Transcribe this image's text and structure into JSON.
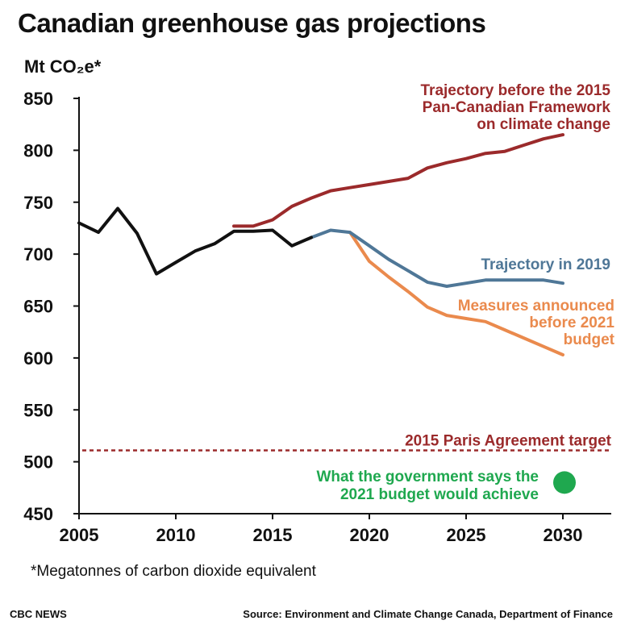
{
  "title": "Canadian greenhouse gas projections",
  "ylabel": "Mt CO₂e*",
  "footnote": "*Megatonnes of carbon dioxide equivalent",
  "brand": "CBC NEWS",
  "source": "Source: Environment and Climate Change Canada, Department of Finance",
  "colors": {
    "historical": "#111111",
    "pre2015": "#9b2a2b",
    "traj2019": "#4f7797",
    "measures2021": "#ea8a4d",
    "target": "#9b2a2b",
    "budget2021": "#1fa84f"
  },
  "chart_data": {
    "type": "line",
    "xlim": [
      2005,
      2032.5
    ],
    "ylim": [
      450,
      850
    ],
    "xticks": [
      2005,
      2010,
      2015,
      2020,
      2025,
      2030
    ],
    "yticks": [
      450,
      500,
      550,
      600,
      650,
      700,
      750,
      800,
      850
    ],
    "series": [
      {
        "key": "historical",
        "x": [
          2005,
          2006,
          2007,
          2008,
          2009,
          2010,
          2011,
          2012,
          2013,
          2014,
          2015,
          2016,
          2017
        ],
        "y": [
          730,
          721,
          744,
          720,
          681,
          692,
          703,
          710,
          722,
          722,
          723,
          708,
          716
        ]
      },
      {
        "key": "pre2015",
        "name": "Trajectory before the 2015 Pan-Canadian Framework on climate change",
        "x": [
          2013,
          2014,
          2015,
          2016,
          2017,
          2018,
          2019,
          2020,
          2021,
          2022,
          2023,
          2024,
          2025,
          2026,
          2027,
          2028,
          2029,
          2030
        ],
        "y": [
          727,
          727,
          733,
          746,
          754,
          761,
          764,
          767,
          770,
          773,
          783,
          788,
          792,
          797,
          799,
          805,
          811,
          815
        ]
      },
      {
        "key": "traj2019",
        "name": "Trajectory in 2019",
        "x": [
          2017,
          2018,
          2019,
          2020,
          2021,
          2022,
          2023,
          2024,
          2025,
          2026,
          2027,
          2028,
          2029,
          2030
        ],
        "y": [
          716,
          723,
          721,
          708,
          695,
          684,
          673,
          669,
          672,
          675,
          675,
          675,
          675,
          672
        ]
      },
      {
        "key": "measures2021",
        "name": "Measures announced before 2021 budget",
        "x": [
          2019,
          2020,
          2021,
          2022,
          2023,
          2024,
          2025,
          2026,
          2027,
          2028,
          2029,
          2030
        ],
        "y": [
          721,
          693,
          678,
          664,
          649,
          641,
          638,
          635,
          627,
          619,
          611,
          603
        ]
      }
    ],
    "target": {
      "value": 511,
      "label": "2015 Paris Agreement target"
    },
    "point": {
      "x": 2030,
      "y": 480,
      "label": "What the government says the 2021 budget would achieve"
    },
    "labels": {
      "pre2015": [
        "Trajectory before the 2015",
        "Pan-Canadian Framework",
        "on climate change"
      ],
      "traj2019": [
        "Trajectory in 2019"
      ],
      "measures2021": [
        "Measures announced",
        "before 2021",
        "budget"
      ],
      "budget2021": [
        "What the government says the",
        "2021 budget would achieve"
      ]
    }
  }
}
